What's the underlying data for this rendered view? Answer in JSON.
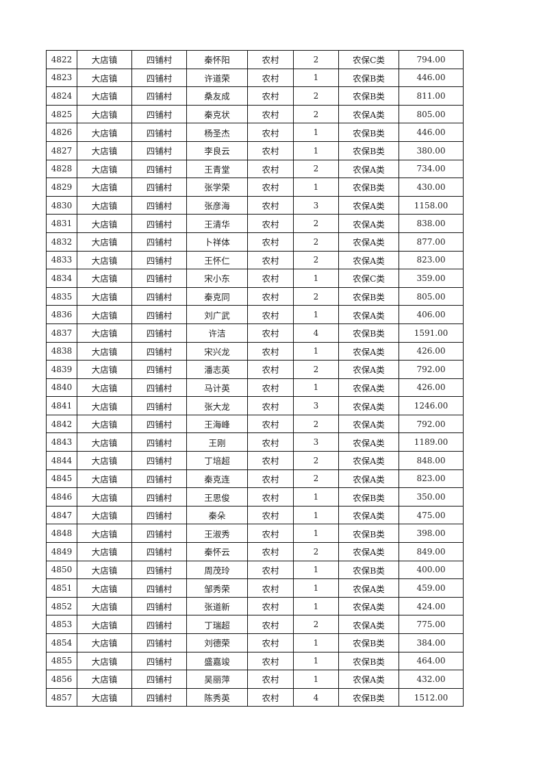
{
  "table": {
    "rows": [
      [
        "4822",
        "大店镇",
        "四铺村",
        "秦怀阳",
        "农村",
        "2",
        "农保C类",
        "794.00"
      ],
      [
        "4823",
        "大店镇",
        "四铺村",
        "许道荣",
        "农村",
        "1",
        "农保B类",
        "446.00"
      ],
      [
        "4824",
        "大店镇",
        "四铺村",
        "桑友成",
        "农村",
        "2",
        "农保B类",
        "811.00"
      ],
      [
        "4825",
        "大店镇",
        "四铺村",
        "秦克状",
        "农村",
        "2",
        "农保A类",
        "805.00"
      ],
      [
        "4826",
        "大店镇",
        "四铺村",
        "杨圣杰",
        "农村",
        "1",
        "农保B类",
        "446.00"
      ],
      [
        "4827",
        "大店镇",
        "四铺村",
        "李良云",
        "农村",
        "1",
        "农保B类",
        "380.00"
      ],
      [
        "4828",
        "大店镇",
        "四铺村",
        "王青堂",
        "农村",
        "2",
        "农保A类",
        "734.00"
      ],
      [
        "4829",
        "大店镇",
        "四铺村",
        "张学荣",
        "农村",
        "1",
        "农保B类",
        "430.00"
      ],
      [
        "4830",
        "大店镇",
        "四铺村",
        "张彦海",
        "农村",
        "3",
        "农保A类",
        "1158.00"
      ],
      [
        "4831",
        "大店镇",
        "四铺村",
        "王清华",
        "农村",
        "2",
        "农保A类",
        "838.00"
      ],
      [
        "4832",
        "大店镇",
        "四铺村",
        "卜祥体",
        "农村",
        "2",
        "农保A类",
        "877.00"
      ],
      [
        "4833",
        "大店镇",
        "四铺村",
        "王怀仁",
        "农村",
        "2",
        "农保A类",
        "823.00"
      ],
      [
        "4834",
        "大店镇",
        "四铺村",
        "宋小东",
        "农村",
        "1",
        "农保C类",
        "359.00"
      ],
      [
        "4835",
        "大店镇",
        "四铺村",
        "秦克同",
        "农村",
        "2",
        "农保B类",
        "805.00"
      ],
      [
        "4836",
        "大店镇",
        "四铺村",
        "刘广武",
        "农村",
        "1",
        "农保A类",
        "406.00"
      ],
      [
        "4837",
        "大店镇",
        "四铺村",
        "许洁",
        "农村",
        "4",
        "农保B类",
        "1591.00"
      ],
      [
        "4838",
        "大店镇",
        "四铺村",
        "宋兴龙",
        "农村",
        "1",
        "农保A类",
        "426.00"
      ],
      [
        "4839",
        "大店镇",
        "四铺村",
        "潘志英",
        "农村",
        "2",
        "农保A类",
        "792.00"
      ],
      [
        "4840",
        "大店镇",
        "四铺村",
        "马计英",
        "农村",
        "1",
        "农保A类",
        "426.00"
      ],
      [
        "4841",
        "大店镇",
        "四铺村",
        "张大龙",
        "农村",
        "3",
        "农保A类",
        "1246.00"
      ],
      [
        "4842",
        "大店镇",
        "四铺村",
        "王海峰",
        "农村",
        "2",
        "农保A类",
        "792.00"
      ],
      [
        "4843",
        "大店镇",
        "四铺村",
        "王刚",
        "农村",
        "3",
        "农保A类",
        "1189.00"
      ],
      [
        "4844",
        "大店镇",
        "四铺村",
        "丁培超",
        "农村",
        "2",
        "农保A类",
        "848.00"
      ],
      [
        "4845",
        "大店镇",
        "四铺村",
        "秦克连",
        "农村",
        "2",
        "农保A类",
        "823.00"
      ],
      [
        "4846",
        "大店镇",
        "四铺村",
        "王思俊",
        "农村",
        "1",
        "农保B类",
        "350.00"
      ],
      [
        "4847",
        "大店镇",
        "四铺村",
        "秦朵",
        "农村",
        "1",
        "农保A类",
        "475.00"
      ],
      [
        "4848",
        "大店镇",
        "四铺村",
        "王淑秀",
        "农村",
        "1",
        "农保B类",
        "398.00"
      ],
      [
        "4849",
        "大店镇",
        "四铺村",
        "秦怀云",
        "农村",
        "2",
        "农保A类",
        "849.00"
      ],
      [
        "4850",
        "大店镇",
        "四铺村",
        "周茂玲",
        "农村",
        "1",
        "农保B类",
        "400.00"
      ],
      [
        "4851",
        "大店镇",
        "四铺村",
        "邹秀荣",
        "农村",
        "1",
        "农保A类",
        "459.00"
      ],
      [
        "4852",
        "大店镇",
        "四铺村",
        "张道新",
        "农村",
        "1",
        "农保A类",
        "424.00"
      ],
      [
        "4853",
        "大店镇",
        "四铺村",
        "丁瑞超",
        "农村",
        "2",
        "农保A类",
        "775.00"
      ],
      [
        "4854",
        "大店镇",
        "四铺村",
        "刘德荣",
        "农村",
        "1",
        "农保B类",
        "384.00"
      ],
      [
        "4855",
        "大店镇",
        "四铺村",
        "盛嘉竣",
        "农村",
        "1",
        "农保B类",
        "464.00"
      ],
      [
        "4856",
        "大店镇",
        "四铺村",
        "吴丽萍",
        "农村",
        "1",
        "农保A类",
        "432.00"
      ],
      [
        "4857",
        "大店镇",
        "四铺村",
        "陈秀英",
        "农村",
        "4",
        "农保B类",
        "1512.00"
      ]
    ]
  }
}
